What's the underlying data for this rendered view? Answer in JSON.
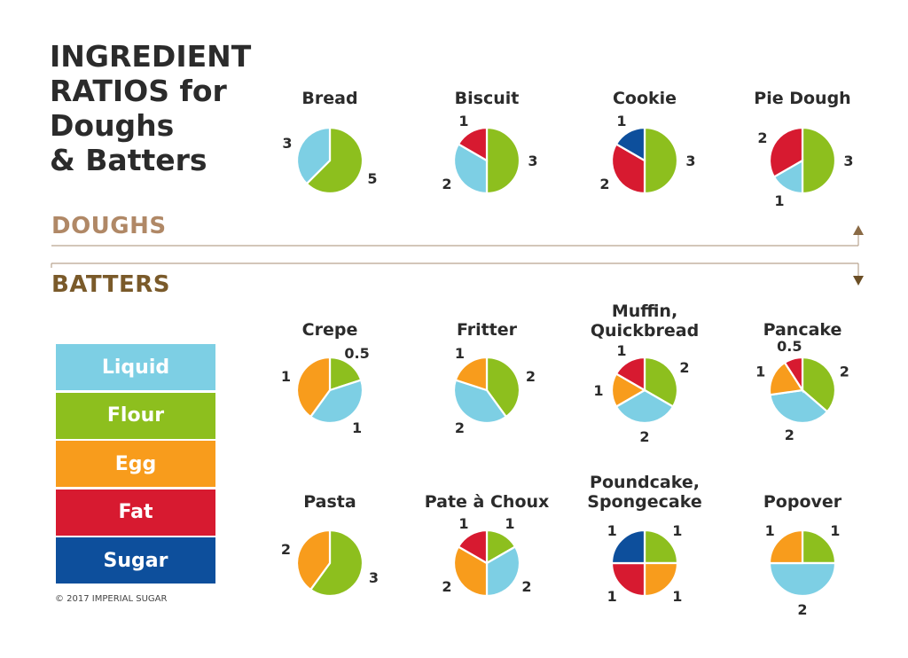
{
  "title_lines": [
    "INGREDIENT",
    "RATIOS for",
    "Doughs",
    "& Batters"
  ],
  "section_labels": {
    "doughs": "DOUGHS",
    "batters": "BATTERS"
  },
  "copyright": "© 2017 IMPERIAL SUGAR",
  "colors": {
    "liquid": "#7dcfe4",
    "flour": "#8dbf1e",
    "egg": "#f89c1c",
    "fat": "#d71a30",
    "sugar": "#0d4f9c",
    "doughs_accent": "#b08866",
    "batters_accent": "#7a5a2a",
    "arrow_line": "#b9a58f"
  },
  "legend": [
    {
      "key": "liquid",
      "label": "Liquid"
    },
    {
      "key": "flour",
      "label": "Flour"
    },
    {
      "key": "egg",
      "label": "Egg"
    },
    {
      "key": "fat",
      "label": "Fat"
    },
    {
      "key": "sugar",
      "label": "Sugar"
    }
  ],
  "chart_data": [
    {
      "type": "pie",
      "group": "doughs",
      "title": "Bread",
      "slices": [
        {
          "ingredient": "flour",
          "value": 5,
          "label": "5"
        },
        {
          "ingredient": "liquid",
          "value": 3,
          "label": "3"
        }
      ]
    },
    {
      "type": "pie",
      "group": "doughs",
      "title": "Biscuit",
      "slices": [
        {
          "ingredient": "flour",
          "value": 3,
          "label": "3"
        },
        {
          "ingredient": "liquid",
          "value": 2,
          "label": "2"
        },
        {
          "ingredient": "fat",
          "value": 1,
          "label": "1"
        }
      ]
    },
    {
      "type": "pie",
      "group": "doughs",
      "title": "Cookie",
      "slices": [
        {
          "ingredient": "flour",
          "value": 3,
          "label": "3"
        },
        {
          "ingredient": "fat",
          "value": 2,
          "label": "2"
        },
        {
          "ingredient": "sugar",
          "value": 1,
          "label": "1"
        }
      ]
    },
    {
      "type": "pie",
      "group": "doughs",
      "title": "Pie Dough",
      "slices": [
        {
          "ingredient": "flour",
          "value": 3,
          "label": "3"
        },
        {
          "ingredient": "liquid",
          "value": 1,
          "label": "1"
        },
        {
          "ingredient": "fat",
          "value": 2,
          "label": "2"
        }
      ]
    },
    {
      "type": "pie",
      "group": "batters",
      "title": "Crepe",
      "slices": [
        {
          "ingredient": "flour",
          "value": 0.5,
          "label": "0.5"
        },
        {
          "ingredient": "liquid",
          "value": 1,
          "label": "1"
        },
        {
          "ingredient": "egg",
          "value": 1,
          "label": "1"
        }
      ]
    },
    {
      "type": "pie",
      "group": "batters",
      "title": "Fritter",
      "slices": [
        {
          "ingredient": "flour",
          "value": 2,
          "label": "2"
        },
        {
          "ingredient": "liquid",
          "value": 2,
          "label": "2"
        },
        {
          "ingredient": "egg",
          "value": 1,
          "label": "1"
        }
      ]
    },
    {
      "type": "pie",
      "group": "batters",
      "title": "Muffin, Quickbread",
      "title_lines": [
        "Muffin,",
        "Quickbread"
      ],
      "slices": [
        {
          "ingredient": "flour",
          "value": 2,
          "label": "2"
        },
        {
          "ingredient": "liquid",
          "value": 2,
          "label": "2"
        },
        {
          "ingredient": "egg",
          "value": 1,
          "label": "1"
        },
        {
          "ingredient": "fat",
          "value": 1,
          "label": "1"
        }
      ]
    },
    {
      "type": "pie",
      "group": "batters",
      "title": "Pancake",
      "slices": [
        {
          "ingredient": "flour",
          "value": 2,
          "label": "2"
        },
        {
          "ingredient": "liquid",
          "value": 2,
          "label": "2"
        },
        {
          "ingredient": "egg",
          "value": 1,
          "label": "1"
        },
        {
          "ingredient": "fat",
          "value": 0.5,
          "label": "0.5"
        }
      ]
    },
    {
      "type": "pie",
      "group": "batters",
      "title": "Pasta",
      "slices": [
        {
          "ingredient": "flour",
          "value": 3,
          "label": "3"
        },
        {
          "ingredient": "egg",
          "value": 2,
          "label": "2"
        }
      ]
    },
    {
      "type": "pie",
      "group": "batters",
      "title": "Pate à Choux",
      "slices": [
        {
          "ingredient": "flour",
          "value": 1,
          "label": "1"
        },
        {
          "ingredient": "liquid",
          "value": 2,
          "label": "2"
        },
        {
          "ingredient": "egg",
          "value": 2,
          "label": "2"
        },
        {
          "ingredient": "fat",
          "value": 1,
          "label": "1"
        }
      ]
    },
    {
      "type": "pie",
      "group": "batters",
      "title": "Poundcake, Spongecake",
      "title_lines": [
        "Poundcake,",
        "Spongecake"
      ],
      "slices": [
        {
          "ingredient": "flour",
          "value": 1,
          "label": "1"
        },
        {
          "ingredient": "egg",
          "value": 1,
          "label": "1"
        },
        {
          "ingredient": "fat",
          "value": 1,
          "label": "1"
        },
        {
          "ingredient": "sugar",
          "value": 1,
          "label": "1"
        }
      ]
    },
    {
      "type": "pie",
      "group": "batters",
      "title": "Popover",
      "slices": [
        {
          "ingredient": "flour",
          "value": 1,
          "label": "1"
        },
        {
          "ingredient": "liquid",
          "value": 2,
          "label": "2"
        },
        {
          "ingredient": "egg",
          "value": 1,
          "label": "1"
        }
      ]
    }
  ]
}
